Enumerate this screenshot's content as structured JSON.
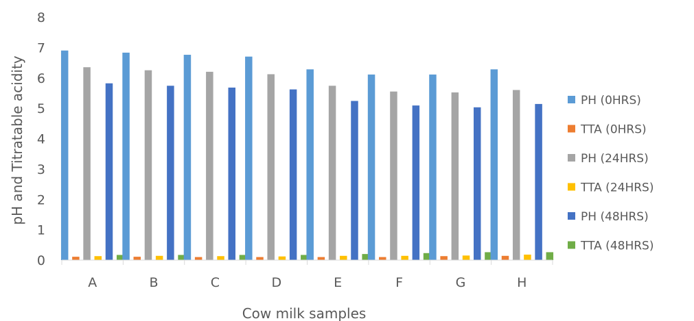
{
  "chart_data": {
    "type": "bar",
    "title": "",
    "xlabel": "Cow milk samples",
    "ylabel": "pH and Titratable acidity",
    "ylim": [
      0,
      8
    ],
    "yticks": [
      "0",
      "1",
      "2",
      "3",
      "4",
      "5",
      "6",
      "7",
      "8"
    ],
    "grid": false,
    "legend_position": "right",
    "categories": [
      "A",
      "B",
      "C",
      "D",
      "E",
      "F",
      "G",
      "H"
    ],
    "series": [
      {
        "name": "PH (0HRS)",
        "color": "#5b9bd5",
        "values": [
          6.9,
          6.83,
          6.76,
          6.7,
          6.28,
          6.11,
          6.11,
          6.28
        ]
      },
      {
        "name": "TTA (0HRS)",
        "color": "#ed7d31",
        "values": [
          0.11,
          0.11,
          0.1,
          0.1,
          0.1,
          0.1,
          0.13,
          0.14
        ]
      },
      {
        "name": "PH (24HRS)",
        "color": "#a5a5a5",
        "values": [
          6.35,
          6.25,
          6.2,
          6.12,
          5.74,
          5.55,
          5.52,
          5.6
        ]
      },
      {
        "name": "TTA (24HRS)",
        "color": "#ffc000",
        "values": [
          0.13,
          0.14,
          0.13,
          0.12,
          0.14,
          0.14,
          0.15,
          0.18
        ]
      },
      {
        "name": "PH (48HRS)",
        "color": "#4472c4",
        "values": [
          5.82,
          5.74,
          5.68,
          5.62,
          5.24,
          5.09,
          5.03,
          5.14
        ]
      },
      {
        "name": "TTA (48HRS)",
        "color": "#70ad47",
        "values": [
          0.17,
          0.17,
          0.17,
          0.17,
          0.2,
          0.23,
          0.26,
          0.26
        ]
      }
    ]
  }
}
